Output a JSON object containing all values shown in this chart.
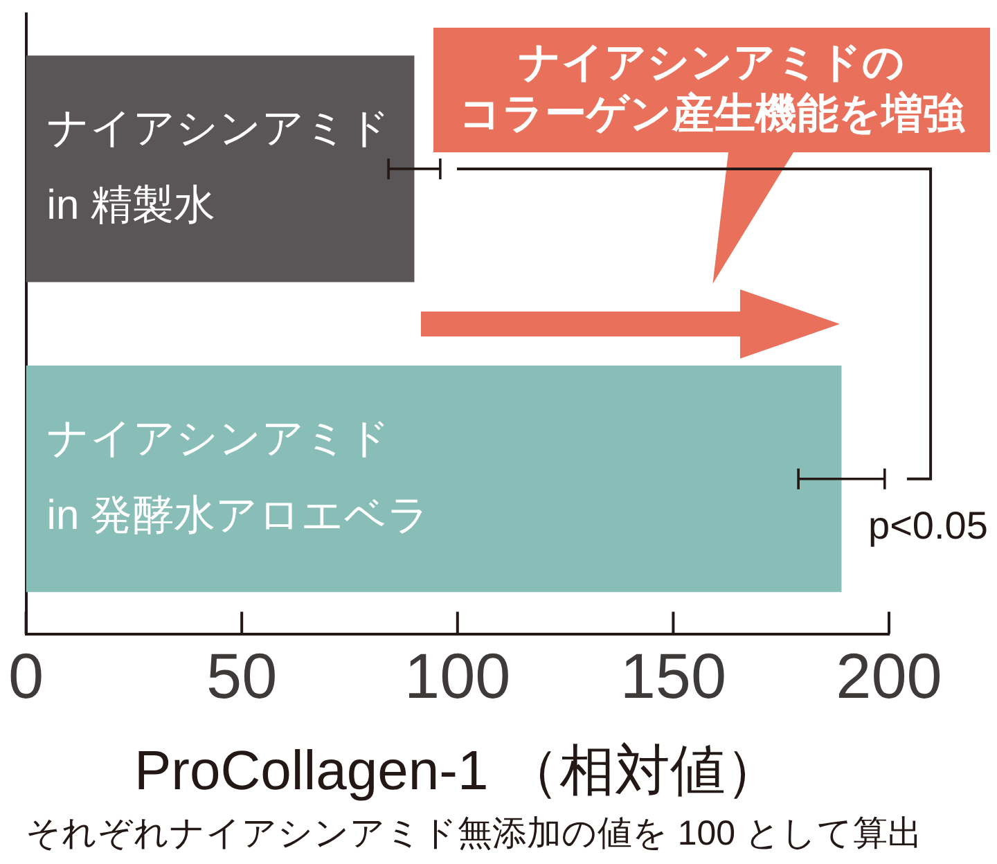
{
  "chart_data": {
    "type": "bar",
    "orientation": "horizontal",
    "categories": [
      "ナイアシンアミド\nin 精製水",
      "ナイアシンアミド\nin 発酵水アロエベラ"
    ],
    "values": [
      90,
      189
    ],
    "errors": [
      6,
      10
    ],
    "colors": [
      "#5a5657",
      "#89beb8"
    ],
    "xlim": [
      0,
      200
    ],
    "xticks": [
      0,
      50,
      100,
      150,
      200
    ],
    "xlabel": "ProCollagen-1 （相対値）",
    "annotations": [
      "ナイアシンアミドの",
      "コラーゲン産生機能を増強",
      "p<0.05",
      "それぞれナイアシンアミド無添加の値を 100 として算出"
    ]
  }
}
